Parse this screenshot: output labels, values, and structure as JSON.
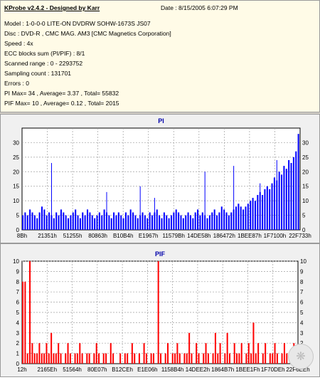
{
  "info": {
    "title": "KProbe v2.4.2 - Designed by Karr",
    "date": "Date : 8/15/2005 6:07:29 PM",
    "lines": [
      "Model : 1-0-0-0 LITE-ON DVDRW SOHW-1673S JS07",
      "Disc : DVD-R , CMC MAG. AM3 [CMC Magnetics Corporation]",
      "Speed : 4x",
      "ECC blocks sum (PI/PIF) : 8/1",
      "Scanned range : 0 - 2293752",
      "Sampling count : 131701",
      "Errors : 0",
      "PI Max= 34 , Average= 3.37 , Total= 55832",
      "PIF Max= 10 , Average= 0.12 , Total= 2015"
    ]
  },
  "chart_data": [
    {
      "type": "bar",
      "title": "PI",
      "ylim": [
        0,
        35
      ],
      "yticks": [
        0,
        5,
        10,
        15,
        20,
        25,
        30
      ],
      "xticks": [
        "8Bh",
        "21351h",
        "51255h",
        "80863h",
        "B10B4h",
        "E1967h",
        "11579Bh",
        "14DE58h",
        "186472h",
        "1BEE87h",
        "1F7100h",
        "22F733h"
      ],
      "grid": true,
      "color": "#0000ff",
      "series": [
        {
          "values": [
            5,
            6,
            5,
            7,
            6,
            5,
            4,
            6,
            8,
            7,
            5,
            6,
            5,
            4,
            6,
            5,
            7,
            6,
            5,
            4,
            5,
            6,
            7,
            5,
            4,
            6,
            5,
            7,
            6,
            5,
            4,
            5,
            6,
            5,
            7,
            6,
            5,
            4,
            6,
            5,
            6,
            5,
            4,
            6,
            5,
            7,
            6,
            5,
            4,
            5,
            6,
            5,
            4,
            6,
            5,
            6,
            7,
            5,
            4,
            6,
            5,
            4,
            5,
            6,
            7,
            6,
            5,
            4,
            5,
            6,
            5,
            4,
            6,
            7,
            5,
            6,
            5,
            4,
            5,
            6,
            7,
            5,
            6,
            8,
            7,
            6,
            5,
            6,
            7,
            8,
            9,
            8,
            7,
            8,
            9,
            10,
            11,
            10,
            12,
            13,
            12,
            14,
            15,
            14,
            16,
            18,
            17,
            20,
            19,
            22,
            21,
            24,
            23,
            25,
            27,
            33
          ],
          "spikes": [
            [
              12,
              23
            ],
            [
              35,
              13
            ],
            [
              49,
              15
            ],
            [
              55,
              11
            ],
            [
              76,
              20
            ],
            [
              88,
              22
            ],
            [
              99,
              16
            ],
            [
              106,
              24
            ]
          ]
        }
      ]
    },
    {
      "type": "bar",
      "title": "PIF",
      "ylim": [
        0,
        10
      ],
      "yticks": [
        0,
        1,
        2,
        3,
        4,
        5,
        6,
        7,
        8,
        9,
        10
      ],
      "xticks": [
        "12h",
        "2165Eh",
        "51564h",
        "80E07h",
        "B12CEh",
        "E1E06h",
        "1158B4h",
        "14DEE2h",
        "1864B7h",
        "1BEE1Fh",
        "1F70DEh",
        "22F6EEh"
      ],
      "grid": true,
      "color": "#ff0000",
      "series": [
        {
          "values": [
            8,
            8,
            1,
            10,
            2,
            1,
            1,
            2,
            1,
            1,
            2,
            1,
            3,
            1,
            1,
            2,
            1,
            0,
            1,
            2,
            1,
            0,
            1,
            1,
            2,
            1,
            0,
            1,
            1,
            0,
            1,
            2,
            1,
            0,
            1,
            1,
            0,
            2,
            1,
            0,
            0,
            1,
            0,
            1,
            1,
            0,
            2,
            1,
            0,
            1,
            0,
            2,
            1,
            0,
            1,
            1,
            0,
            10,
            1,
            0,
            1,
            2,
            0,
            1,
            1,
            2,
            1,
            0,
            1,
            1,
            3,
            1,
            0,
            2,
            1,
            0,
            1,
            2,
            1,
            0,
            1,
            3,
            1,
            2,
            0,
            1,
            3,
            1,
            0,
            2,
            1,
            1,
            2,
            0,
            1,
            2,
            1,
            4,
            1,
            2,
            0,
            1,
            2,
            0,
            1,
            1,
            2,
            1,
            0,
            1,
            2,
            1,
            0,
            1,
            2,
            1
          ]
        }
      ]
    }
  ]
}
